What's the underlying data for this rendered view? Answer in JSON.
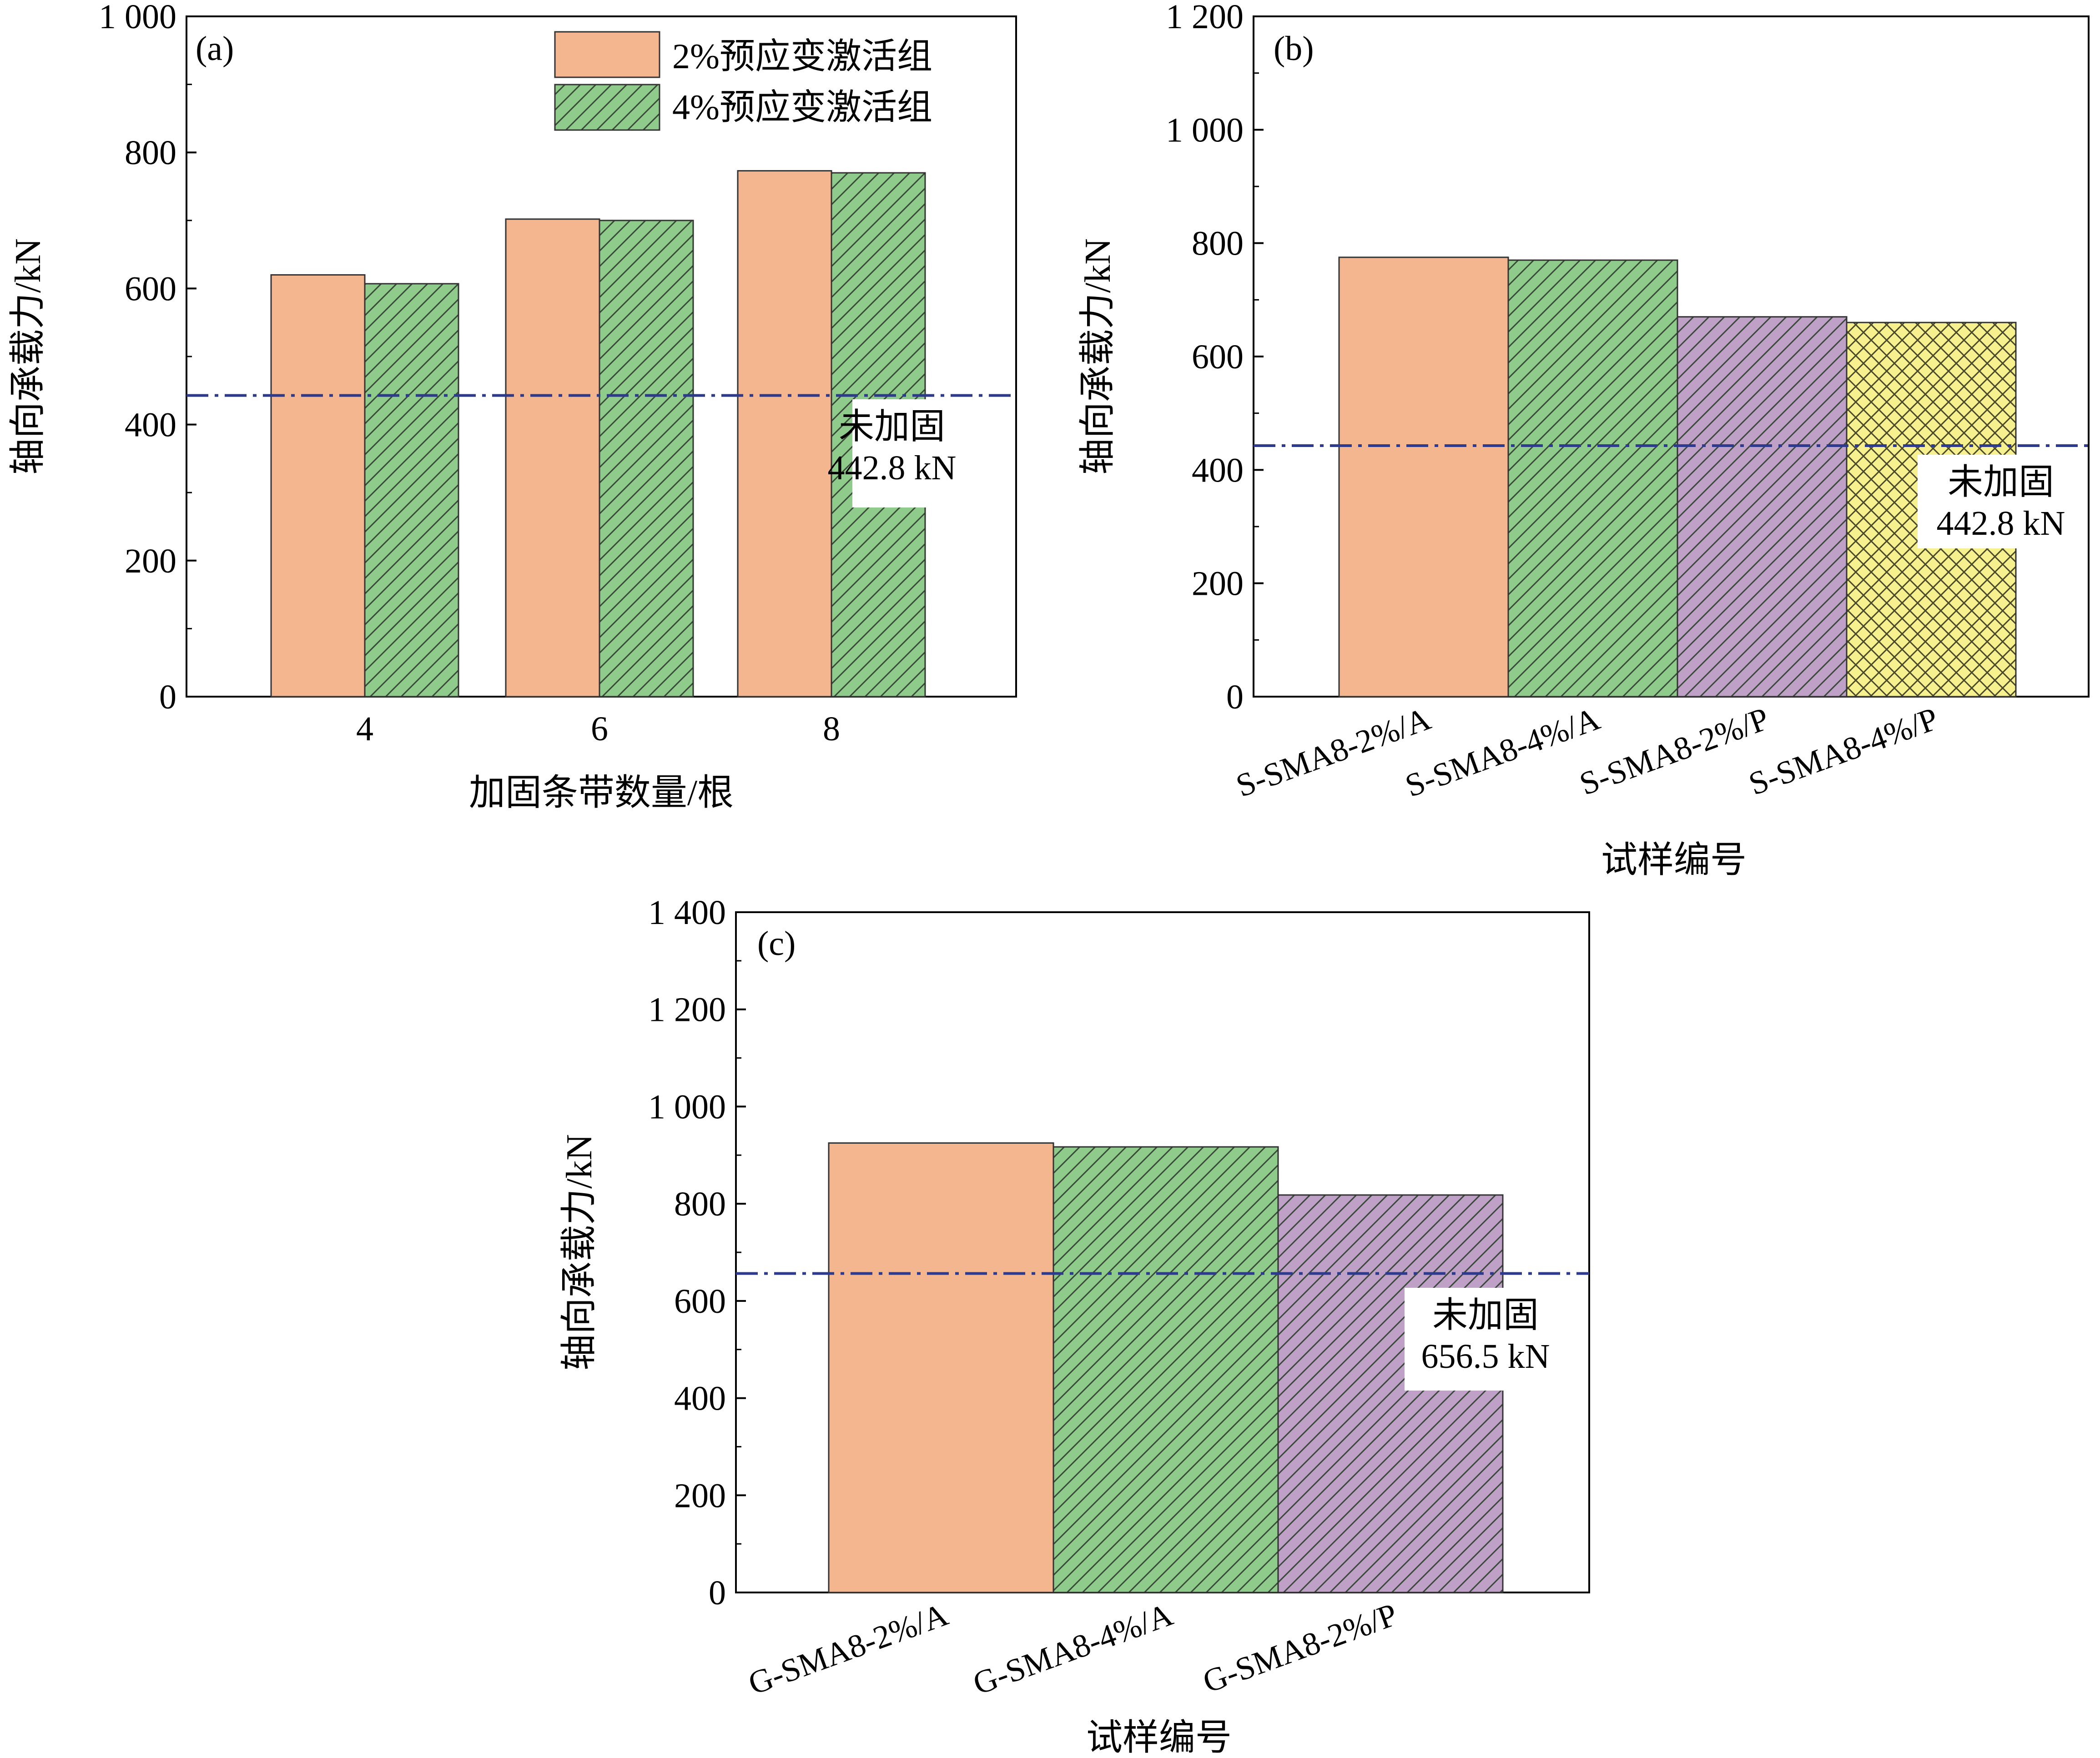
{
  "colors": {
    "orange": "#F4B68E",
    "green": "#8FCB8A",
    "purple": "#BFA0C6",
    "yellow": "#F6F08E",
    "hatch": "#2E4A2E",
    "bar_edge": "#333333",
    "ref_line": "#2E3A8C"
  },
  "chart_data": [
    {
      "type": "bar",
      "panel_label": "(a)",
      "xlabel": "加固条带数量/根",
      "ylabel": "轴向承载力/kN",
      "categories": [
        "4",
        "6",
        "8"
      ],
      "ylim": [
        0,
        1000
      ],
      "yticks": [
        0,
        200,
        400,
        600,
        800,
        1000
      ],
      "ytick_labels": [
        "0",
        "200",
        "400",
        "600",
        "800",
        "1 000"
      ],
      "series": [
        {
          "name": "2%预应变激活组",
          "values": [
            620,
            702,
            773
          ],
          "color": "orange",
          "pattern": "none"
        },
        {
          "name": "4%预应变激活组",
          "values": [
            607,
            700,
            770
          ],
          "color": "green",
          "pattern": "hatch"
        }
      ],
      "legend": "top-right",
      "reference": {
        "value": 442.8,
        "label": "未加固",
        "value_label": "442.8 kN"
      }
    },
    {
      "type": "bar",
      "panel_label": "(b)",
      "xlabel": "试样编号",
      "ylabel": "轴向承载力/kN",
      "categories": [
        "S-SMA8-2%/A",
        "S-SMA8-4%/A",
        "S-SMA8-2%/P",
        "S-SMA8-4%/P"
      ],
      "ylim": [
        0,
        1200
      ],
      "yticks": [
        0,
        200,
        400,
        600,
        800,
        1000,
        1200
      ],
      "ytick_labels": [
        "0",
        "200",
        "400",
        "600",
        "800",
        "1 000",
        "1 200"
      ],
      "values": [
        775,
        770,
        670,
        660
      ],
      "bar_colors": [
        "orange",
        "green",
        "purple",
        "yellow"
      ],
      "bar_patterns": [
        "none",
        "hatch",
        "hatch",
        "cross"
      ],
      "reference": {
        "value": 442.8,
        "label": "未加固",
        "value_label": "442.8 kN"
      }
    },
    {
      "type": "bar",
      "panel_label": "(c)",
      "xlabel": "试样编号",
      "ylabel": "轴向承载力/kN",
      "categories": [
        "G-SMA8-2%/A",
        "G-SMA8-4%/A",
        "G-SMA8-2%/P"
      ],
      "ylim": [
        0,
        1400
      ],
      "yticks": [
        0,
        200,
        400,
        600,
        800,
        1000,
        1200,
        1400
      ],
      "ytick_labels": [
        "0",
        "200",
        "400",
        "600",
        "800",
        "1 000",
        "1 200",
        "1 400"
      ],
      "values": [
        925,
        917,
        818
      ],
      "bar_colors": [
        "orange",
        "green",
        "purple"
      ],
      "bar_patterns": [
        "none",
        "hatch",
        "hatch"
      ],
      "reference": {
        "value": 656.5,
        "label": "未加固",
        "value_label": "656.5 kN"
      }
    }
  ]
}
